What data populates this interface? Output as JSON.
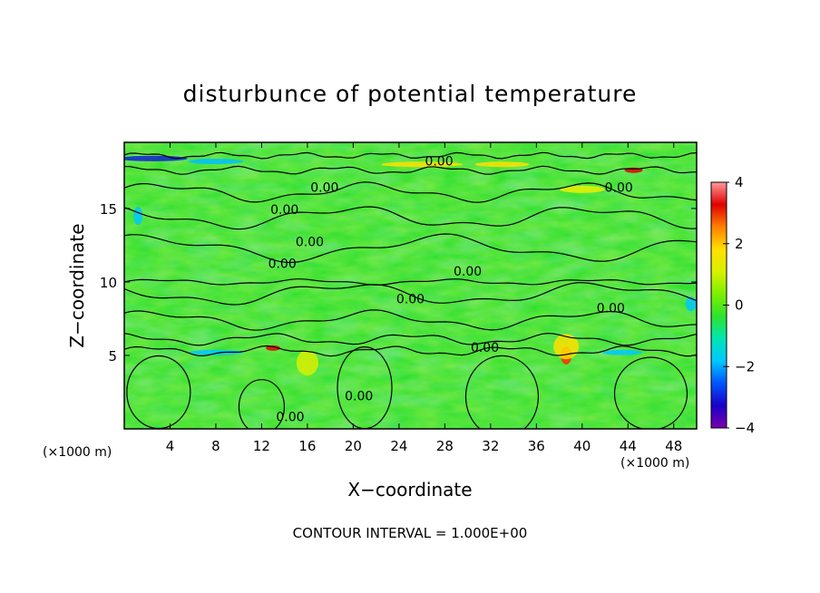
{
  "chart_data": {
    "type": "heatmap",
    "title": "disturbunce of potential temperature",
    "xlabel": "X−coordinate",
    "ylabel": "Z−coordinate",
    "x_unit_left": "(×1000 m)",
    "x_unit_right": "(×1000 m)",
    "xlim": [
      0,
      50
    ],
    "ylim": [
      0,
      19.5
    ],
    "x_ticks": [
      "4",
      "8",
      "12",
      "16",
      "20",
      "24",
      "28",
      "32",
      "36",
      "40",
      "44",
      "48"
    ],
    "x_tick_values": [
      4,
      8,
      12,
      16,
      20,
      24,
      28,
      32,
      36,
      40,
      44,
      48
    ],
    "y_ticks": [
      "5",
      "10",
      "15"
    ],
    "y_tick_values": [
      5,
      10,
      15
    ],
    "colorbar": {
      "min": -4,
      "max": 4,
      "ticks": [
        "4",
        "2",
        "0",
        "−2",
        "−4"
      ],
      "tick_values": [
        4,
        2,
        0,
        -2,
        -4
      ],
      "colors": [
        "#7a00b0",
        "#1a00c8",
        "#0055ff",
        "#00c8ff",
        "#00e6b4",
        "#2ee22e",
        "#7cf000",
        "#d8f000",
        "#ffe000",
        "#ff8000",
        "#e00000",
        "#ff9a9a"
      ]
    },
    "contour_labels": [
      {
        "text": "0.00",
        "x": 27.5,
        "z": 18.0
      },
      {
        "text": "0.00",
        "x": 17.5,
        "z": 16.2
      },
      {
        "text": "0.00",
        "x": 43.2,
        "z": 16.2
      },
      {
        "text": "0.00",
        "x": 14.0,
        "z": 14.7
      },
      {
        "text": "0.00",
        "x": 16.2,
        "z": 12.5
      },
      {
        "text": "0.00",
        "x": 13.8,
        "z": 11.0
      },
      {
        "text": "0.00",
        "x": 30.0,
        "z": 10.5
      },
      {
        "text": "0.00",
        "x": 25.0,
        "z": 8.6
      },
      {
        "text": "0.00",
        "x": 42.5,
        "z": 8.0
      },
      {
        "text": "0.00",
        "x": 31.5,
        "z": 5.3
      },
      {
        "text": "0.00",
        "x": 20.5,
        "z": 2.0
      },
      {
        "text": "0.00",
        "x": 14.5,
        "z": 0.6
      }
    ],
    "contour_interval_text": "CONTOUR INTERVAL = 1.000E+00"
  }
}
